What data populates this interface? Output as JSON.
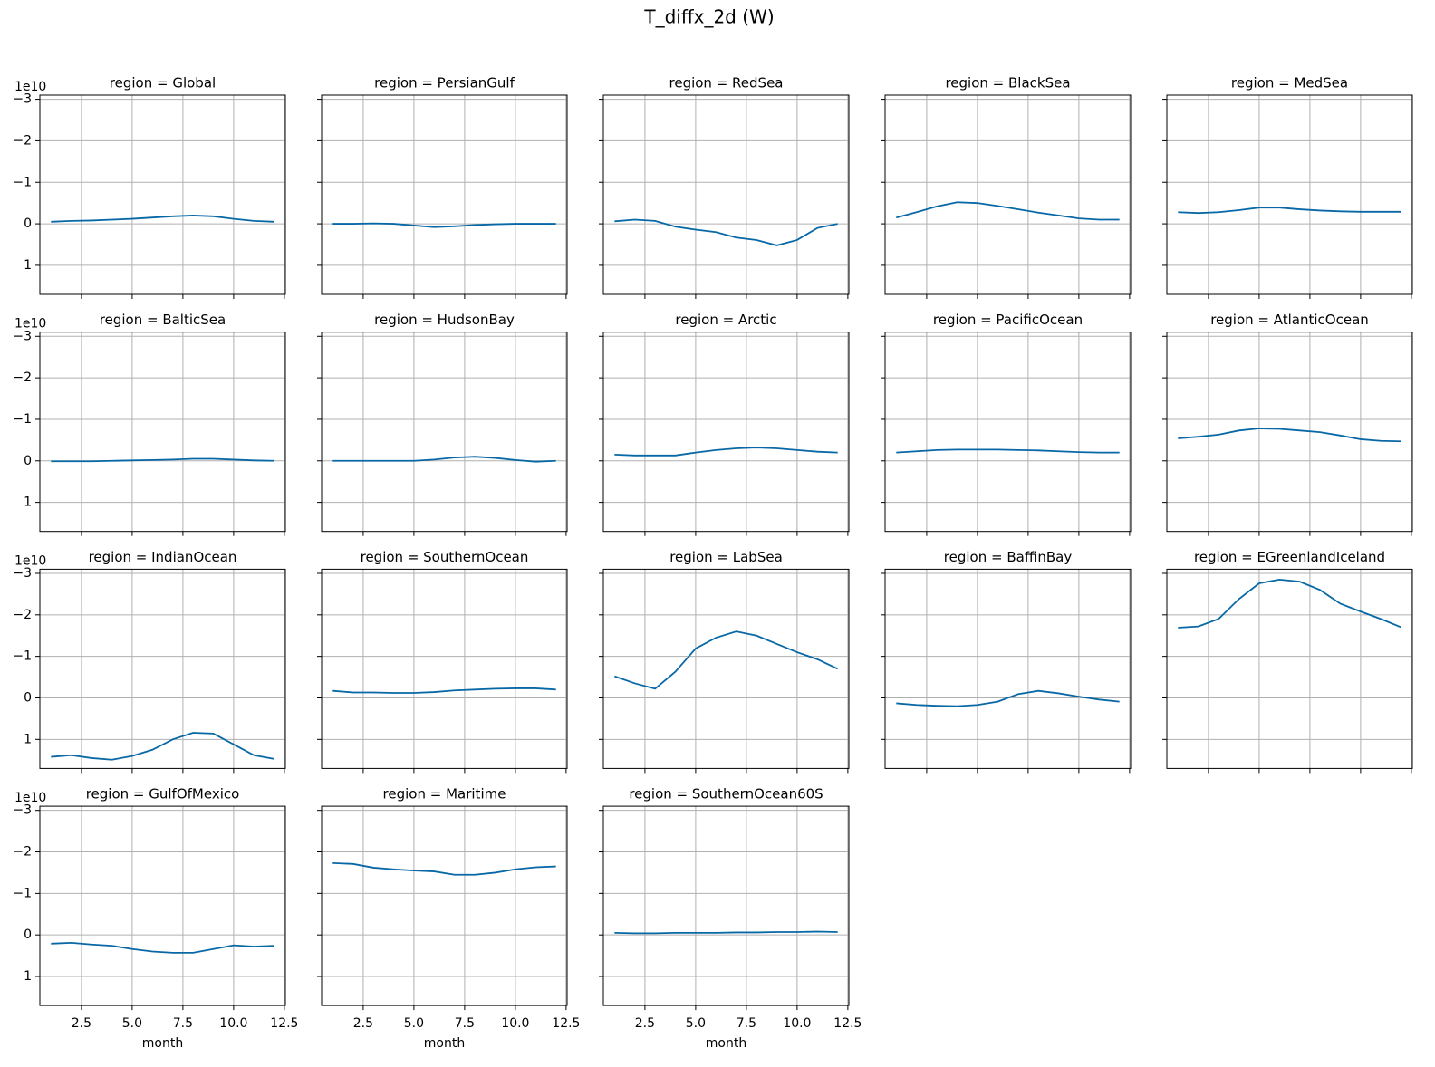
{
  "chart_data": {
    "type": "line",
    "title": "T_diffx_2d (W)",
    "xlabel": "month",
    "y_offset_label": "1e10",
    "color": "#0868a6",
    "grid": true,
    "x": [
      1,
      2,
      3,
      4,
      5,
      6,
      7,
      8,
      9,
      10,
      11,
      12
    ],
    "xlim": [
      0.45,
      12.55
    ],
    "xticks": [
      2.5,
      {
        "value": 5,
        "label": "5.0"
      },
      7.5,
      {
        "value": 10,
        "label": "10.0"
      },
      12.5
    ],
    "ylim": [
      1.7,
      -3.1
    ],
    "yticks": [
      {
        "value": -3,
        "label": "−3"
      },
      {
        "value": -2,
        "label": "−2"
      },
      {
        "value": -1,
        "label": "−1"
      },
      0,
      1
    ],
    "panels": [
      {
        "title": "region = Global",
        "values": [
          -0.05,
          -0.07,
          -0.08,
          -0.1,
          -0.12,
          -0.15,
          -0.18,
          -0.2,
          -0.18,
          -0.12,
          -0.07,
          -0.05
        ]
      },
      {
        "title": "region = PersianGulf",
        "values": [
          0,
          0,
          -0.01,
          0,
          0.04,
          0.08,
          0.06,
          0.03,
          0.01,
          0,
          0,
          0
        ]
      },
      {
        "title": "region = RedSea",
        "values": [
          -0.06,
          -0.1,
          -0.07,
          0.07,
          0.14,
          0.2,
          0.33,
          0.39,
          0.52,
          0.39,
          0.1,
          0
        ]
      },
      {
        "title": "region = BlackSea",
        "values": [
          -0.15,
          -0.28,
          -0.42,
          -0.52,
          -0.5,
          -0.43,
          -0.35,
          -0.27,
          -0.2,
          -0.13,
          -0.1,
          -0.1
        ]
      },
      {
        "title": "region = MedSea",
        "values": [
          -0.28,
          -0.26,
          -0.28,
          -0.33,
          -0.39,
          -0.39,
          -0.35,
          -0.32,
          -0.3,
          -0.29,
          -0.29,
          -0.29
        ]
      },
      {
        "title": "region = BalticSea",
        "values": [
          0.01,
          0.01,
          0.01,
          0,
          -0.01,
          -0.02,
          -0.03,
          -0.05,
          -0.05,
          -0.03,
          -0.01,
          0
        ]
      },
      {
        "title": "region = HudsonBay",
        "values": [
          0,
          0,
          0,
          0,
          0,
          -0.03,
          -0.08,
          -0.1,
          -0.07,
          -0.02,
          0.02,
          0
        ]
      },
      {
        "title": "region = Arctic",
        "values": [
          -0.15,
          -0.13,
          -0.13,
          -0.13,
          -0.2,
          -0.26,
          -0.3,
          -0.32,
          -0.3,
          -0.26,
          -0.22,
          -0.2
        ]
      },
      {
        "title": "region = PacificOcean",
        "values": [
          -0.2,
          -0.23,
          -0.26,
          -0.27,
          -0.27,
          -0.27,
          -0.26,
          -0.25,
          -0.23,
          -0.21,
          -0.2,
          -0.2
        ]
      },
      {
        "title": "region = AtlanticOcean",
        "values": [
          -0.54,
          -0.58,
          -0.63,
          -0.73,
          -0.78,
          -0.77,
          -0.73,
          -0.69,
          -0.61,
          -0.52,
          -0.48,
          -0.47
        ]
      },
      {
        "title": "region = IndianOcean",
        "values": [
          1.42,
          1.38,
          1.45,
          1.49,
          1.4,
          1.25,
          1.0,
          0.84,
          0.86,
          1.12,
          1.38,
          1.47
        ]
      },
      {
        "title": "region = SouthernOcean",
        "values": [
          -0.17,
          -0.13,
          -0.13,
          -0.12,
          -0.12,
          -0.14,
          -0.18,
          -0.2,
          -0.22,
          -0.23,
          -0.23,
          -0.2
        ]
      },
      {
        "title": "region = LabSea",
        "values": [
          -0.52,
          -0.35,
          -0.22,
          -0.63,
          -1.19,
          -1.45,
          -1.6,
          -1.5,
          -1.3,
          -1.1,
          -0.93,
          -0.7
        ]
      },
      {
        "title": "region = BaffinBay",
        "values": [
          0.13,
          0.17,
          0.19,
          0.2,
          0.17,
          0.09,
          -0.09,
          -0.17,
          -0.11,
          -0.03,
          0.04,
          0.09
        ]
      },
      {
        "title": "region = EGreenlandIceland",
        "values": [
          -1.69,
          -1.72,
          -1.9,
          -2.38,
          -2.76,
          -2.85,
          -2.8,
          -2.6,
          -2.27,
          -2.08,
          -1.9,
          -1.7
        ]
      },
      {
        "title": "region = GulfOfMexico",
        "values": [
          0.21,
          0.19,
          0.23,
          0.26,
          0.34,
          0.4,
          0.43,
          0.43,
          0.34,
          0.25,
          0.28,
          0.26
        ]
      },
      {
        "title": "region = Maritime",
        "values": [
          -1.73,
          -1.71,
          -1.62,
          -1.58,
          -1.55,
          -1.53,
          -1.45,
          -1.45,
          -1.5,
          -1.58,
          -1.63,
          -1.65
        ]
      },
      {
        "title": "region = SouthernOcean60S",
        "values": [
          -0.05,
          -0.04,
          -0.04,
          -0.05,
          -0.05,
          -0.05,
          -0.06,
          -0.06,
          -0.07,
          -0.07,
          -0.08,
          -0.07
        ]
      }
    ]
  }
}
